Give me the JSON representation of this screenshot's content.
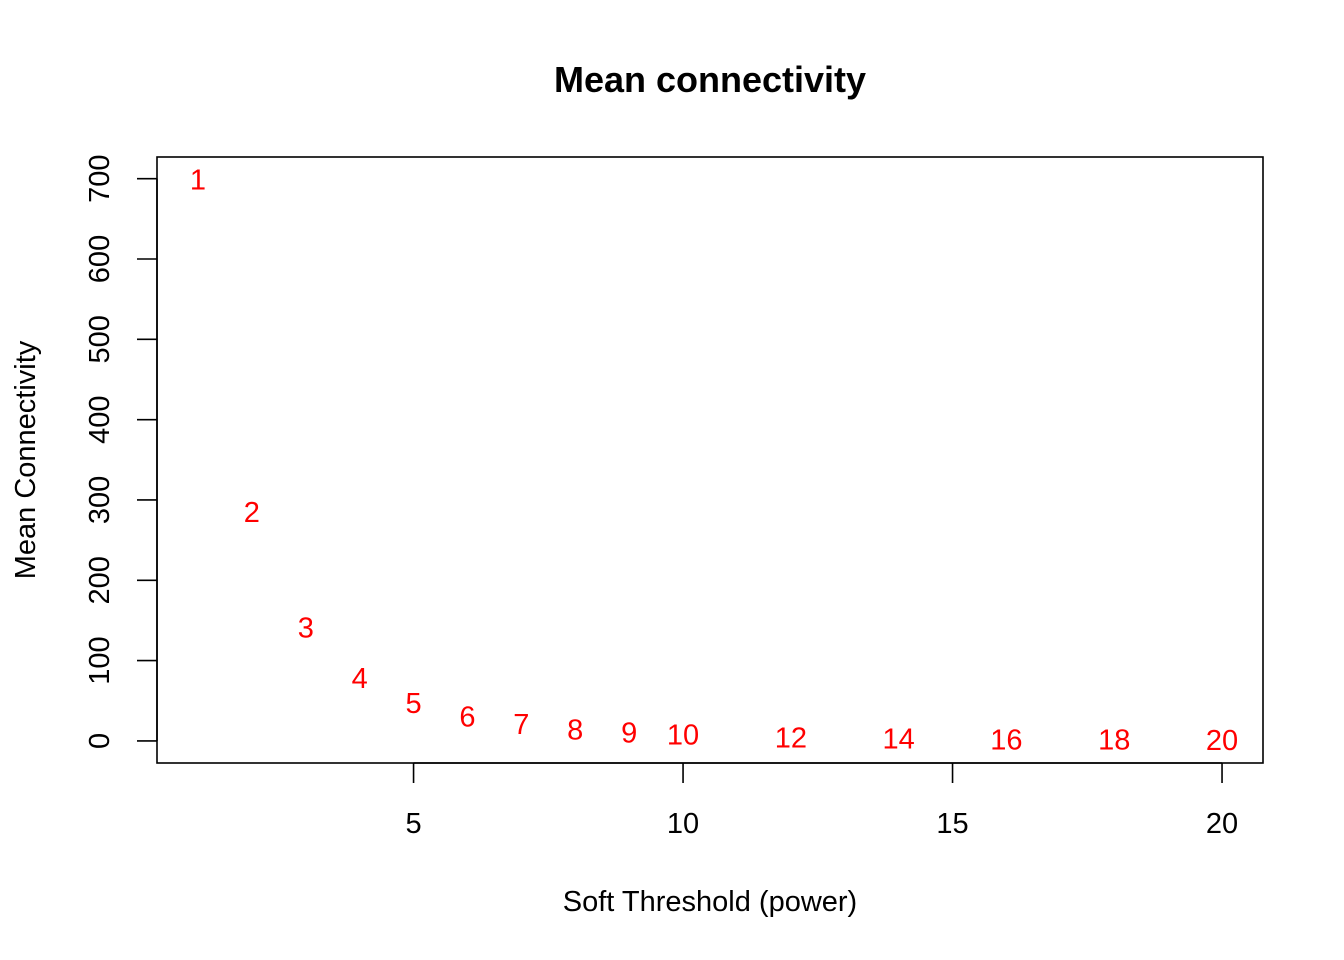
{
  "chart_data": {
    "type": "scatter",
    "title": "Mean connectivity",
    "xlabel": "Soft Threshold (power)",
    "ylabel": "Mean Connectivity",
    "xlim": [
      0.24,
      20.76
    ],
    "ylim": [
      -27.5,
      727
    ],
    "x_ticks": [
      5,
      10,
      15,
      20
    ],
    "y_ticks": [
      0,
      100,
      200,
      300,
      400,
      500,
      600,
      700
    ],
    "marker": "text",
    "point_color": "#ff0000",
    "grid": false,
    "legend": "none",
    "series": [
      {
        "x": [
          1,
          2,
          3,
          4,
          5,
          6,
          7,
          8,
          9,
          10,
          12,
          14,
          16,
          18,
          20
        ],
        "y": [
          698,
          284,
          140,
          77,
          46,
          29,
          20,
          13,
          9,
          7,
          3,
          1.5,
          0.7,
          0.4,
          0.2
        ],
        "labels": [
          "1",
          "2",
          "3",
          "4",
          "5",
          "6",
          "7",
          "8",
          "9",
          "10",
          "12",
          "14",
          "16",
          "18",
          "20"
        ]
      }
    ]
  }
}
